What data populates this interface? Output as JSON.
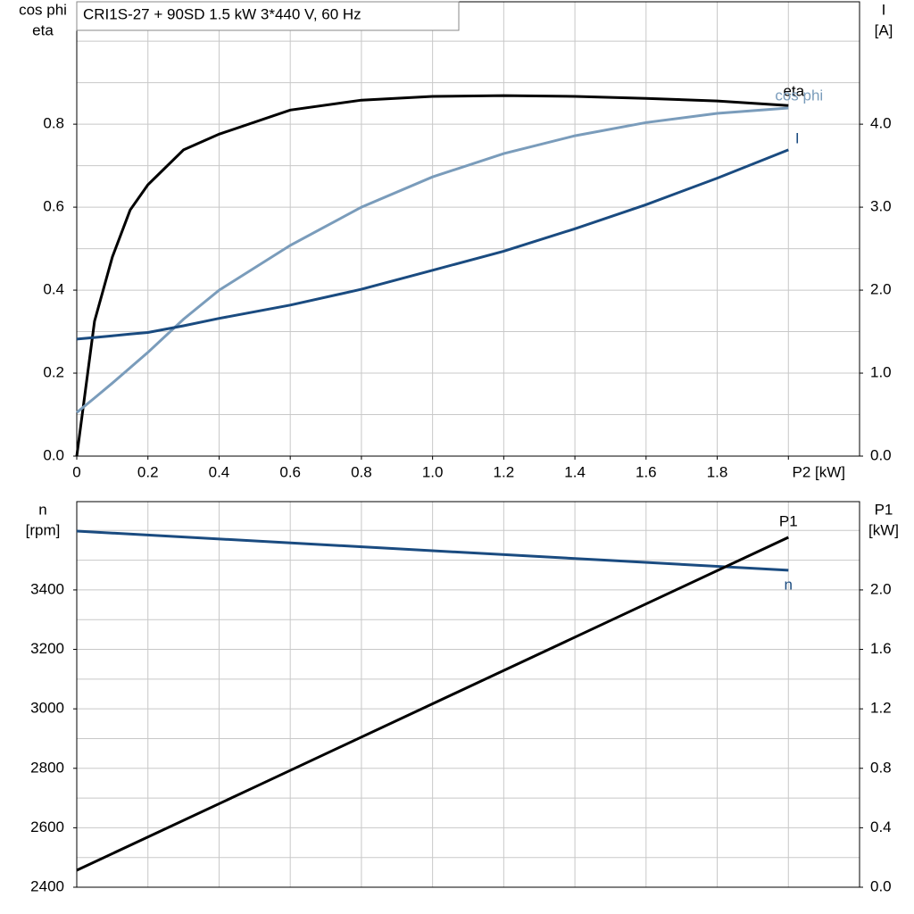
{
  "chart_data": [
    {
      "type": "line",
      "title": "CRI1S-27 + 90SD   1.5 kW   3*440 V, 60 Hz",
      "ylabel": [
        "cos phi",
        "eta"
      ],
      "y2label": [
        "I",
        "[A]"
      ],
      "x": [
        0,
        0.05,
        0.1,
        0.15,
        0.2,
        0.3,
        0.4,
        0.6,
        0.8,
        1.0,
        1.2,
        1.4,
        1.6,
        1.8,
        2.0
      ],
      "series": [
        {
          "name": "eta",
          "color": "#000000",
          "values": [
            0,
            0.325,
            0.48,
            0.593,
            0.654,
            0.738,
            0.776,
            0.834,
            0.858,
            0.867,
            0.869,
            0.867,
            0.862,
            0.856,
            0.845
          ]
        },
        {
          "name": "cos phi",
          "color": "#7a9cbb",
          "values": [
            0.105,
            0.14,
            0.176,
            0.213,
            0.25,
            0.33,
            0.4,
            0.508,
            0.6,
            0.673,
            0.729,
            0.772,
            0.804,
            0.826,
            0.839
          ]
        },
        {
          "name": "I",
          "color": "#1a4b80",
          "axis": "y2",
          "values": [
            1.41,
            1.43,
            1.45,
            1.47,
            1.49,
            1.57,
            1.66,
            1.82,
            2.01,
            2.24,
            2.47,
            2.74,
            3.03,
            3.35,
            3.69
          ]
        }
      ],
      "xlim": [
        0,
        2.2
      ],
      "xticks": [
        {
          "value": 0,
          "label": "0"
        },
        0.2,
        0.4,
        0.6,
        0.8,
        {
          "value": 1.0,
          "label": "1.0"
        },
        1.2,
        1.4,
        1.6,
        1.8,
        {
          "value": 2.0,
          "label": "P2 [kW]"
        }
      ],
      "xgrid": [
        0.2,
        0.4,
        0.6,
        0.8,
        1.0,
        1.2,
        1.4,
        1.6,
        1.8,
        2.0
      ],
      "ylim": [
        0,
        1.095
      ],
      "yticks": [
        {
          "value": 0,
          "label": "0.0"
        },
        0.2,
        0.4,
        0.6,
        0.8
      ],
      "ygrid": [
        0.1,
        0.2,
        0.3,
        0.4,
        0.5,
        0.6,
        0.7,
        0.8,
        0.9,
        1.0
      ],
      "y2lim": [
        0,
        5.475
      ],
      "y2ticks": [
        {
          "value": 0,
          "label": "0.0"
        },
        {
          "value": 1,
          "label": "1.0"
        },
        {
          "value": 2,
          "label": "2.0"
        },
        {
          "value": 3,
          "label": "3.0"
        },
        {
          "value": 4,
          "label": "4.0"
        }
      ]
    },
    {
      "type": "line",
      "ylabel": [
        "n",
        "[rpm]"
      ],
      "y2label": [
        "P1",
        "[kW]"
      ],
      "x": [
        0,
        0.5,
        1.0,
        1.5,
        2.0
      ],
      "series": [
        {
          "name": "n",
          "color": "#1a4b80",
          "values": [
            3598,
            3565,
            3532,
            3499,
            3466
          ]
        },
        {
          "name": "P1",
          "color": "#000000",
          "axis": "y2",
          "values": [
            0.114,
            0.674,
            1.234,
            1.794,
            2.354
          ]
        }
      ],
      "xlim": [
        0,
        2.2
      ],
      "xgrid": [
        0.2,
        0.4,
        0.6,
        0.8,
        1.0,
        1.2,
        1.4,
        1.6,
        1.8,
        2.0
      ],
      "ylim": [
        2400,
        3697
      ],
      "yticks": [
        2400,
        2600,
        2800,
        3000,
        3200,
        3400
      ],
      "ygrid": [
        2500,
        2600,
        2700,
        2800,
        2900,
        3000,
        3100,
        3200,
        3300,
        3400,
        3500,
        3600
      ],
      "y2lim": [
        0,
        2.594
      ],
      "y2ticks": [
        {
          "value": 0,
          "label": "0.0"
        },
        0.4,
        0.8,
        1.2,
        1.6,
        {
          "value": 2,
          "label": "2.0"
        }
      ]
    }
  ]
}
